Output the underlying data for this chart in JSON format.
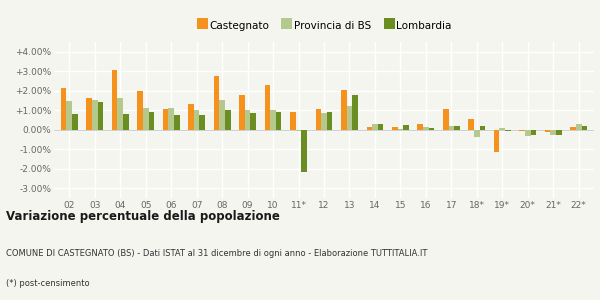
{
  "categories": [
    "02",
    "03",
    "04",
    "05",
    "06",
    "07",
    "08",
    "09",
    "10",
    "11*",
    "12",
    "13",
    "14",
    "15",
    "16",
    "17",
    "18*",
    "19*",
    "20*",
    "21*",
    "22*"
  ],
  "castegnato": [
    2.15,
    1.65,
    3.05,
    2.0,
    1.05,
    1.3,
    2.78,
    1.8,
    2.3,
    0.9,
    1.05,
    2.02,
    0.15,
    0.15,
    0.3,
    1.05,
    0.55,
    -1.15,
    -0.05,
    -0.1,
    0.15
  ],
  "provincia_bs": [
    1.45,
    1.55,
    1.65,
    1.1,
    1.12,
    1.02,
    1.55,
    1.02,
    1.02,
    -0.05,
    0.85,
    1.2,
    0.28,
    0.05,
    0.12,
    0.18,
    -0.35,
    0.1,
    -0.3,
    -0.28,
    0.32
  ],
  "lombardia": [
    0.8,
    1.4,
    0.8,
    0.9,
    0.75,
    0.75,
    1.02,
    0.85,
    0.9,
    -2.15,
    0.9,
    1.8,
    0.3,
    0.25,
    0.1,
    0.18,
    0.18,
    -0.05,
    -0.28,
    -0.25,
    0.2
  ],
  "color_castegnato": "#f5921e",
  "color_provincia": "#b5c98e",
  "color_lombardia": "#6b8e23",
  "title": "Variazione percentuale della popolazione",
  "subtitle1": "COMUNE DI CASTEGNATO (BS) - Dati ISTAT al 31 dicembre di ogni anno - Elaborazione TUTTITALIA.IT",
  "subtitle2": "(*) post-censimento",
  "legend_castegnato": "Castegnato",
  "legend_provincia": "Provincia di BS",
  "legend_lombardia": "Lombardia",
  "ylim": [
    -3.5,
    4.5
  ],
  "yticks": [
    -3.0,
    -2.0,
    -1.0,
    0.0,
    1.0,
    2.0,
    3.0,
    4.0
  ],
  "ytick_labels": [
    "-3.00%",
    "-2.00%",
    "-1.00%",
    "0.00%",
    "+1.00%",
    "+2.00%",
    "+3.00%",
    "+4.00%"
  ],
  "background_color": "#f5f5f0",
  "grid_color": "#ffffff"
}
